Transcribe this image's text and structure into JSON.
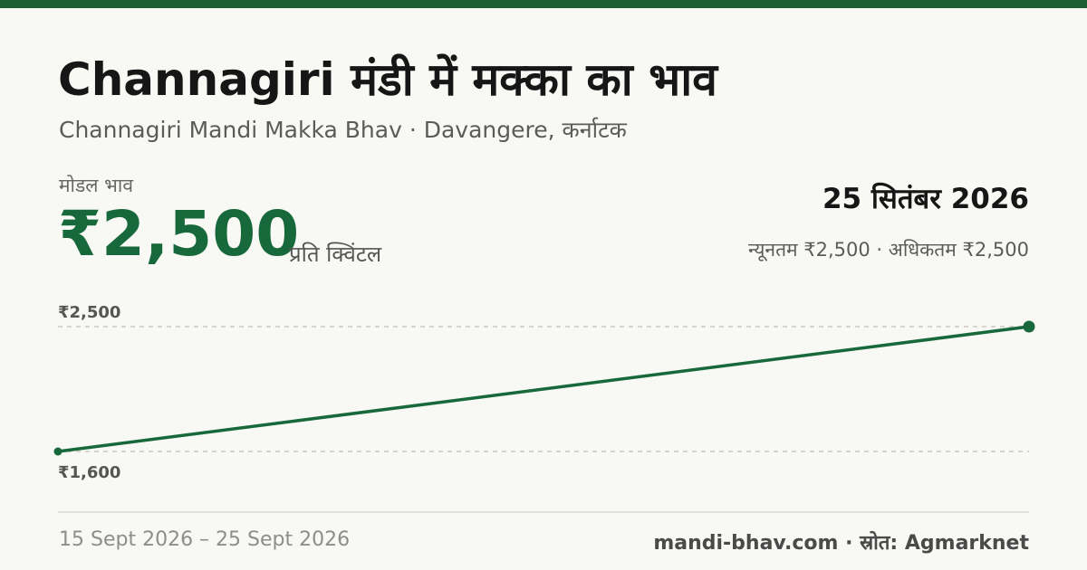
{
  "brand_color": "#1b5e32",
  "line_color": "#17693b",
  "header": {
    "title": "Channagiri मंडी में मक्का का भाव",
    "subtitle": "Channagiri Mandi Makka Bhav · Davangere, कर्नाटक"
  },
  "price": {
    "label": "मोडल भाव",
    "value": "₹2,500",
    "unit": "प्रति क्विंटल"
  },
  "summary": {
    "date": "25 सितंबर 2026",
    "range": "न्यूनतम ₹2,500 · अधिकतम ₹2,500"
  },
  "chart_data": {
    "type": "line",
    "x": [
      "15 Sept 2026",
      "25 Sept 2026"
    ],
    "series": [
      {
        "values": [
          1600,
          2500
        ]
      }
    ],
    "ylim": [
      1600,
      2500
    ],
    "ytick_labels": [
      "₹2,500",
      "₹1,600"
    ],
    "grid": true,
    "markers": true
  },
  "footer": {
    "date_range": "15 Sept 2026 – 25 Sept 2026",
    "source": "mandi-bhav.com · स्रोत: Agmarknet"
  }
}
